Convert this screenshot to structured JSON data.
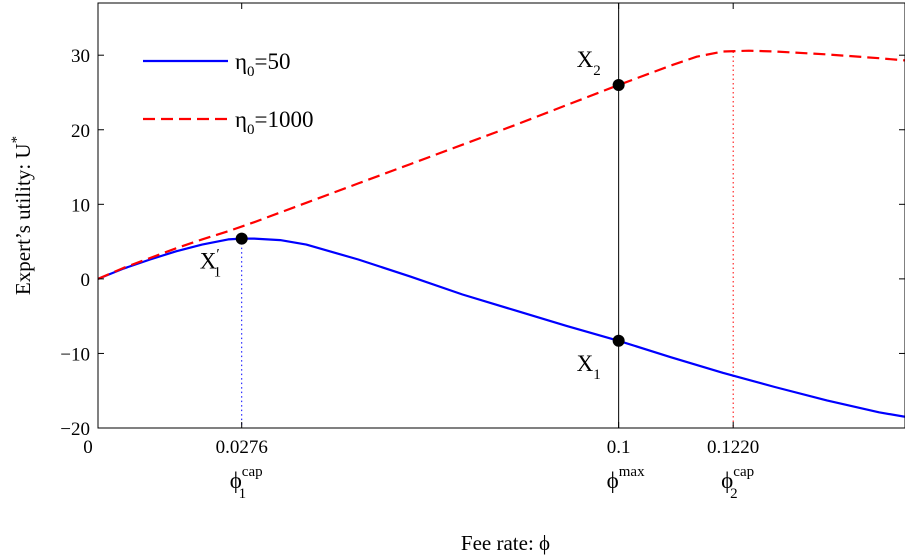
{
  "chart_data": {
    "type": "line",
    "xlabel": "Fee rate: ϕ",
    "ylabel": "Expert’s utility: U",
    "ylabel_sup": "*",
    "xlim": [
      0,
      0.155
    ],
    "ylim": [
      -20,
      37
    ],
    "x_ticks": [
      {
        "value": 0,
        "label": "0"
      },
      {
        "value": 0.0276,
        "label": "0.0276"
      },
      {
        "value": 0.1,
        "label": "0.1"
      },
      {
        "value": 0.122,
        "label": "0.1220"
      }
    ],
    "y_ticks": [
      {
        "value": -20,
        "label": "−20"
      },
      {
        "value": -10,
        "label": "−10"
      },
      {
        "value": 0,
        "label": "0"
      },
      {
        "value": 10,
        "label": "10"
      },
      {
        "value": 20,
        "label": "20"
      },
      {
        "value": 30,
        "label": "30"
      }
    ],
    "series": [
      {
        "name": "η0=50",
        "name_base": "η",
        "name_sub": "0",
        "name_rest": "=50",
        "color": "#0000ff",
        "style": "solid",
        "x": [
          0,
          0.005,
          0.01,
          0.015,
          0.02,
          0.025,
          0.0276,
          0.03,
          0.035,
          0.04,
          0.05,
          0.06,
          0.07,
          0.08,
          0.09,
          0.1,
          0.11,
          0.12,
          0.13,
          0.14,
          0.15,
          0.155
        ],
        "y": [
          0,
          1.4,
          2.6,
          3.7,
          4.6,
          5.3,
          5.4,
          5.4,
          5.2,
          4.6,
          2.6,
          0.3,
          -2.1,
          -4.2,
          -6.3,
          -8.3,
          -10.5,
          -12.6,
          -14.5,
          -16.3,
          -17.9,
          -18.5
        ]
      },
      {
        "name": "η0=1000",
        "name_base": "η",
        "name_sub": "0",
        "name_rest": "=1000",
        "color": "#ff0000",
        "style": "dashed",
        "x": [
          0,
          0.005,
          0.01,
          0.015,
          0.02,
          0.025,
          0.03,
          0.04,
          0.05,
          0.06,
          0.07,
          0.08,
          0.09,
          0.1,
          0.11,
          0.115,
          0.12,
          0.125,
          0.13,
          0.14,
          0.15,
          0.155
        ],
        "y": [
          0,
          1.5,
          2.8,
          4.1,
          5.3,
          6.4,
          7.6,
          10.2,
          12.8,
          15.4,
          18.0,
          20.6,
          23.3,
          26.0,
          28.6,
          29.8,
          30.5,
          30.6,
          30.5,
          30.1,
          29.6,
          29.3
        ]
      }
    ],
    "reference_lines": [
      {
        "x": 0.0276,
        "color": "#0000ff",
        "style": "dotted",
        "to_y": 5.4
      },
      {
        "x": 0.1,
        "color": "#000000",
        "style": "solid"
      },
      {
        "x": 0.122,
        "color": "#ff0000",
        "style": "dotted",
        "to_y": 30.5
      }
    ],
    "points": [
      {
        "x": 0.0276,
        "y": 5.4,
        "label": "X",
        "sub": "1",
        "sup": "′",
        "placement": "below-left"
      },
      {
        "x": 0.1,
        "y": 26.0,
        "label": "X",
        "sub": "2",
        "sup": "",
        "placement": "above-left"
      },
      {
        "x": 0.1,
        "y": -8.3,
        "label": "X",
        "sub": "1",
        "sup": "",
        "placement": "below-left"
      }
    ],
    "x_symbols": [
      {
        "x": 0.0276,
        "base": "ϕ",
        "sup": "cap",
        "sub": "1"
      },
      {
        "x": 0.1,
        "base": "ϕ",
        "sup": "max",
        "sub": ""
      },
      {
        "x": 0.122,
        "base": "ϕ",
        "sup": "cap",
        "sub": "2"
      }
    ],
    "legend_position": "top-left",
    "grid": false
  }
}
